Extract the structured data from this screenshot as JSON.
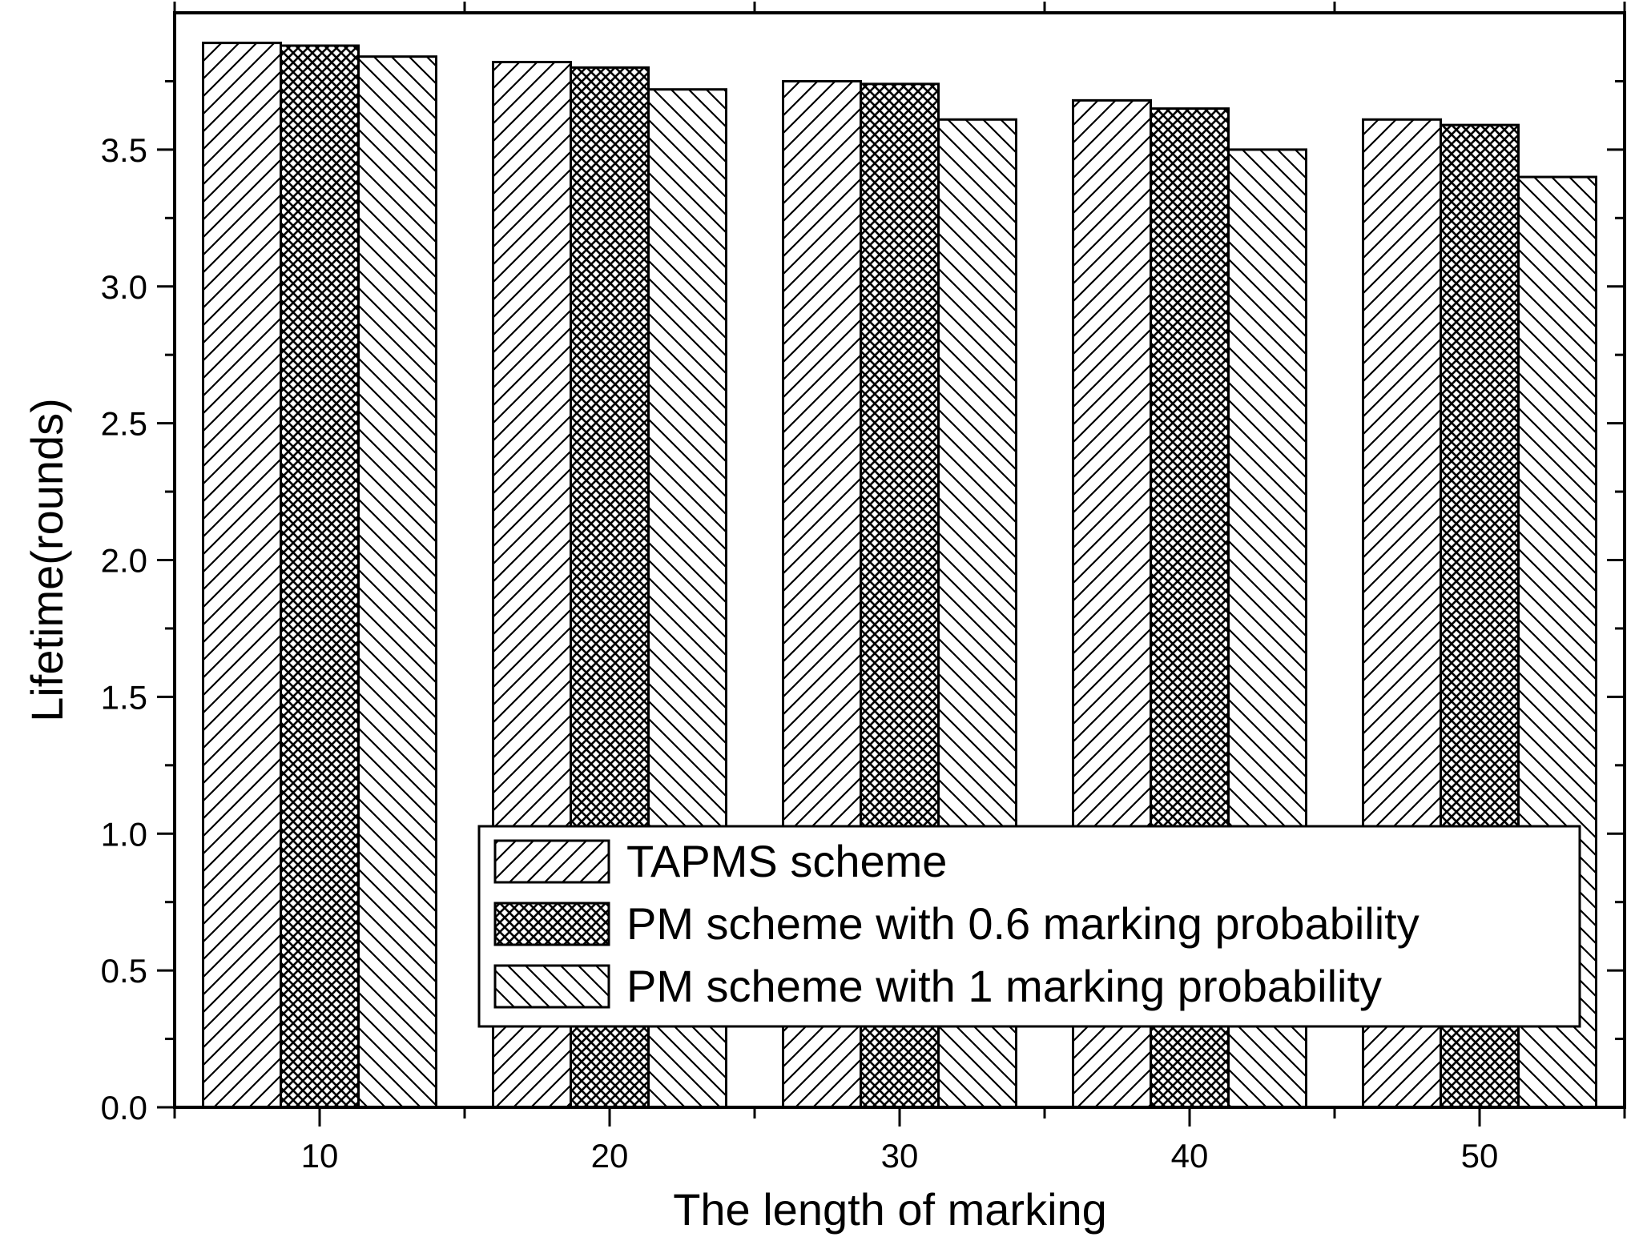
{
  "chart_data": {
    "type": "bar",
    "title": "",
    "xlabel": "The length of marking",
    "ylabel": "Lifetime(rounds)",
    "categories": [
      "10",
      "20",
      "30",
      "40",
      "50"
    ],
    "ylim": [
      0,
      4.0
    ],
    "yticks": [
      "0.0",
      "0.5",
      "1.0",
      "1.5",
      "2.0",
      "2.5",
      "3.0",
      "3.5"
    ],
    "grid": false,
    "legend_position": "bottom-right",
    "series": [
      {
        "name": "TAPMS scheme",
        "pattern": "forward-hatch",
        "values": [
          3.89,
          3.82,
          3.75,
          3.68,
          3.61
        ]
      },
      {
        "name": "PM scheme with 0.6 marking probability",
        "pattern": "cross-hatch",
        "values": [
          3.88,
          3.8,
          3.74,
          3.65,
          3.59
        ]
      },
      {
        "name": "PM scheme with 1 marking probability",
        "pattern": "back-hatch",
        "values": [
          3.84,
          3.72,
          3.61,
          3.5,
          3.4
        ]
      }
    ],
    "colors": {
      "bar_fill": "#ffffff",
      "stroke": "#000000"
    }
  }
}
